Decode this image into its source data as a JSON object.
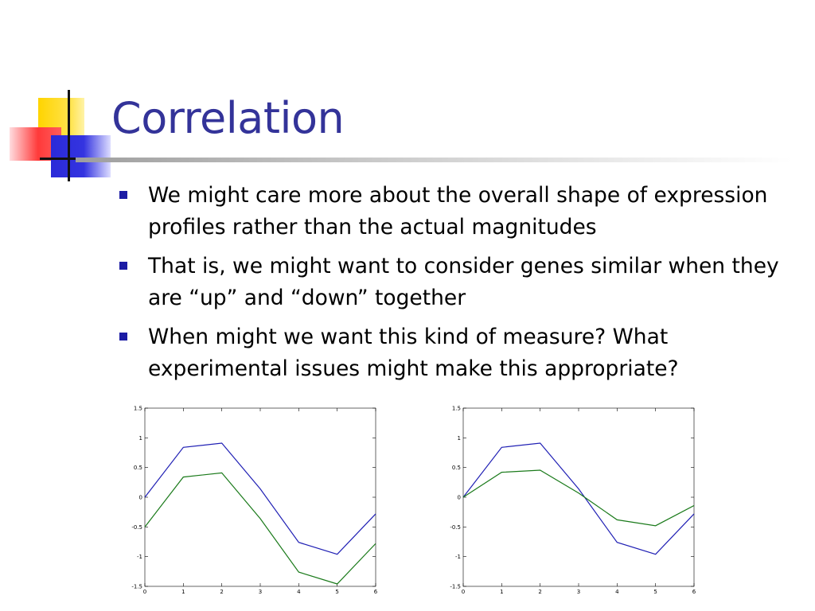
{
  "slide": {
    "title": "Correlation",
    "bullets": [
      "We might care more about the overall shape of expression profiles rather than the actual magnitudes",
      "That is, we might want to consider genes similar when they are  “up” and “down” together",
      "When might we want this kind of measure?  What experimental issues might make this appropriate?"
    ],
    "colors": {
      "title": "#333399",
      "bullet": "#1c1ca4",
      "series_blue": "#1f1fb4",
      "series_green": "#1a7a1a"
    }
  },
  "chart_data": [
    {
      "type": "line",
      "x": [
        0,
        1,
        2,
        3,
        4,
        5,
        6
      ],
      "xlim": [
        0,
        6
      ],
      "ylim": [
        -1.5,
        1.5
      ],
      "xticks": [
        "0",
        "1",
        "2",
        "3",
        "4",
        "5",
        "6"
      ],
      "yticks": [
        "1.5",
        "1",
        "0.5",
        "0",
        "-0.5",
        "-1",
        "-1.5"
      ],
      "grid": false,
      "series": [
        {
          "color": "#1f1fb4",
          "values": [
            0.0,
            0.84,
            0.91,
            0.14,
            -0.76,
            -0.96,
            -0.28
          ]
        },
        {
          "color": "#1a7a1a",
          "values": [
            -0.5,
            0.34,
            0.41,
            -0.36,
            -1.26,
            -1.46,
            -0.78
          ]
        }
      ]
    },
    {
      "type": "line",
      "x": [
        0,
        1,
        2,
        3,
        4,
        5,
        6
      ],
      "xlim": [
        0,
        6
      ],
      "ylim": [
        -1.5,
        1.5
      ],
      "xticks": [
        "0",
        "1",
        "2",
        "3",
        "4",
        "5",
        "6"
      ],
      "yticks": [
        "1.5",
        "1",
        "0.5",
        "0",
        "-0.5",
        "-1",
        "-1.5"
      ],
      "grid": false,
      "series": [
        {
          "color": "#1f1fb4",
          "values": [
            0.0,
            0.84,
            0.91,
            0.14,
            -0.76,
            -0.96,
            -0.28
          ]
        },
        {
          "color": "#1a7a1a",
          "values": [
            0.0,
            0.42,
            0.455,
            0.07,
            -0.38,
            -0.48,
            -0.14
          ]
        }
      ]
    }
  ]
}
